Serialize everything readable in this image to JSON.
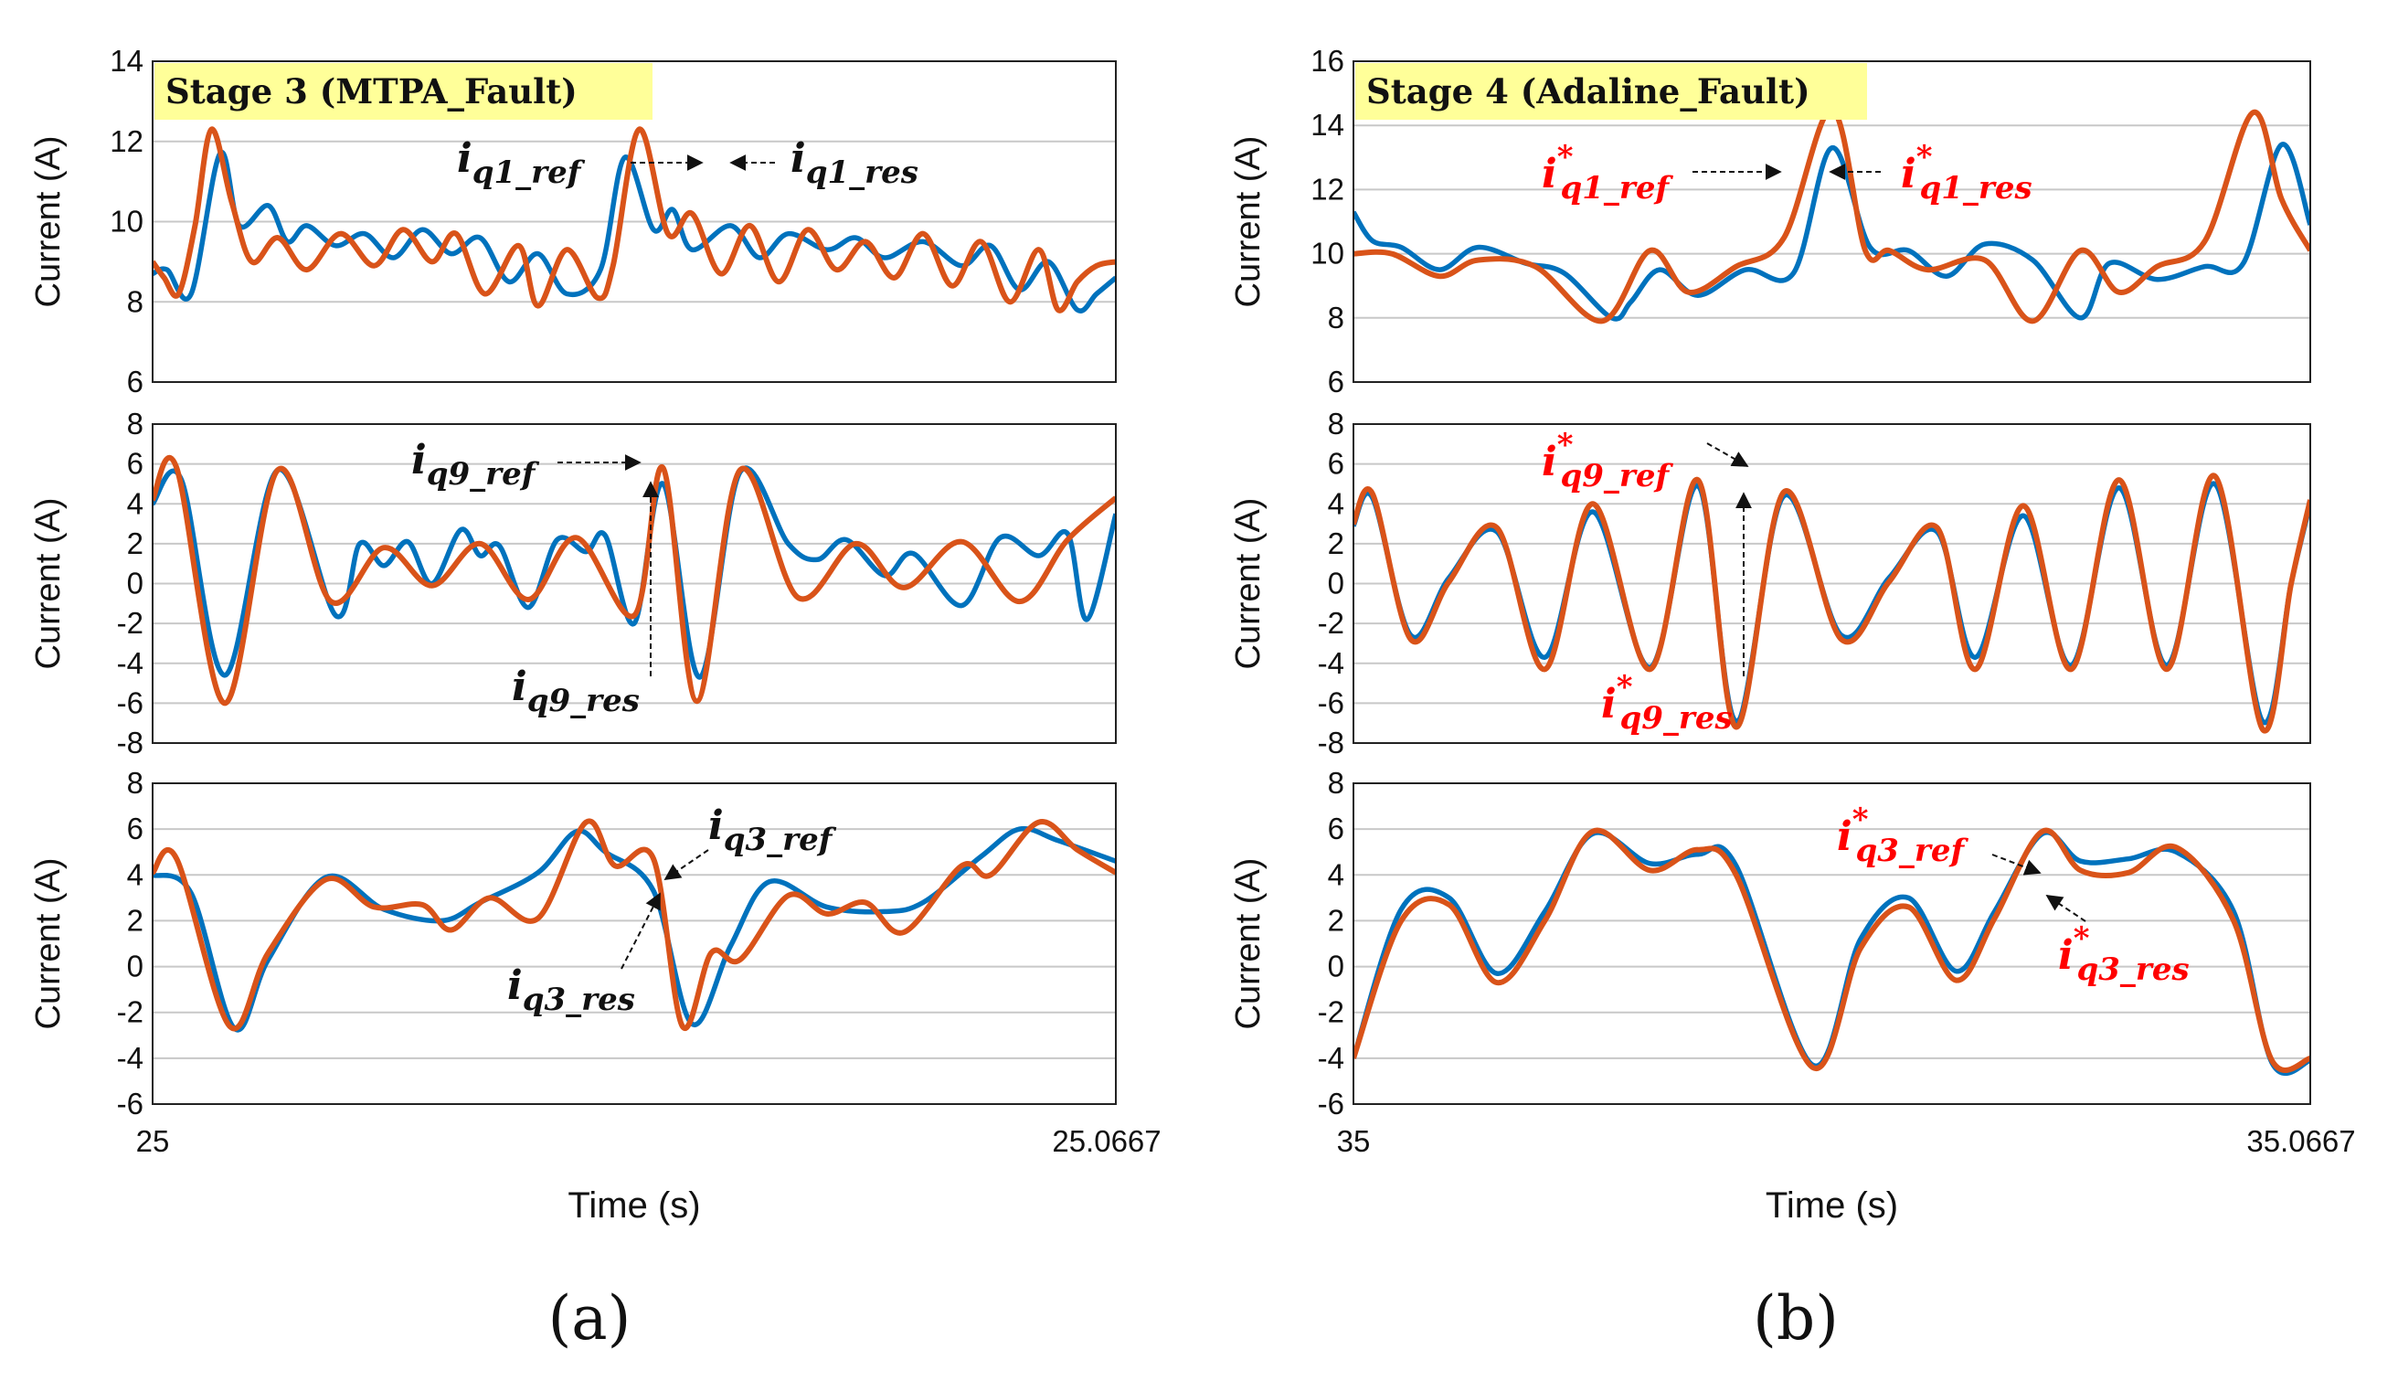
{
  "colors": {
    "ref": "#D95319",
    "res": "#0072BD",
    "grid": "#c8c8c8",
    "stage_bg": "#ffff99",
    "ann_black": "#111111",
    "ann_red": "#ff0000"
  },
  "captions": [
    "(a)",
    "(b)"
  ],
  "chart_data": [
    {
      "type": "line",
      "panel": "a",
      "stage_label": "Stage 3 (MTPA_Fault)",
      "xlabel": "Time (s)",
      "xlim": [
        25,
        25.0667
      ],
      "xtick_labels": [
        "25",
        "25.0667"
      ],
      "subplots": [
        {
          "ylabel": "Current (A)",
          "ylim": [
            6,
            14
          ],
          "yticks": [
            6,
            8,
            10,
            12,
            14
          ],
          "annotations": [
            {
              "label": "i",
              "sub": "q1_ref",
              "star": false
            },
            {
              "label": "i",
              "sub": "q1_res",
              "star": false
            }
          ],
          "series": [
            {
              "name": "i_q1_ref",
              "x": [
                0,
                0.012,
                0.027,
                0.044,
                0.061,
                0.082,
                0.103,
                0.13,
                0.16,
                0.195,
                0.23,
                0.26,
                0.29,
                0.315,
                0.345,
                0.38,
                0.4,
                0.43,
                0.462,
                0.478,
                0.505,
                0.535,
                0.56,
                0.59,
                0.62,
                0.65,
                0.68,
                0.71,
                0.74,
                0.77,
                0.8,
                0.83,
                0.86,
                0.89,
                0.92,
                0.94,
                0.96,
                0.98,
                1.0
              ],
              "y": [
                9.0,
                8.6,
                8.2,
                9.9,
                12.3,
                10.5,
                9.0,
                9.6,
                8.8,
                9.7,
                8.9,
                9.8,
                9.0,
                9.7,
                8.2,
                9.4,
                7.9,
                9.3,
                8.1,
                8.9,
                12.3,
                9.7,
                10.2,
                8.7,
                9.9,
                8.5,
                9.8,
                8.8,
                9.5,
                8.6,
                9.7,
                8.4,
                9.5,
                8.0,
                9.3,
                7.8,
                8.5,
                8.9,
                9.0
              ]
            },
            {
              "name": "i_q1_res",
              "x": [
                0,
                0.015,
                0.04,
                0.07,
                0.09,
                0.12,
                0.14,
                0.16,
                0.19,
                0.22,
                0.25,
                0.28,
                0.31,
                0.34,
                0.37,
                0.4,
                0.43,
                0.465,
                0.49,
                0.52,
                0.54,
                0.56,
                0.6,
                0.63,
                0.66,
                0.7,
                0.73,
                0.76,
                0.8,
                0.84,
                0.87,
                0.9,
                0.93,
                0.96,
                0.98,
                1.0
              ],
              "y": [
                8.7,
                8.8,
                8.2,
                11.7,
                9.9,
                10.4,
                9.5,
                9.9,
                9.4,
                9.7,
                9.1,
                9.8,
                9.2,
                9.6,
                8.5,
                9.2,
                8.2,
                8.8,
                11.6,
                9.8,
                10.3,
                9.3,
                9.9,
                9.1,
                9.7,
                9.3,
                9.6,
                9.1,
                9.5,
                8.9,
                9.4,
                8.3,
                9.0,
                7.8,
                8.2,
                8.6
              ]
            }
          ]
        },
        {
          "ylabel": "Current (A)",
          "ylim": [
            -8,
            8
          ],
          "yticks": [
            -8,
            -6,
            -4,
            -2,
            0,
            2,
            4,
            6,
            8
          ],
          "annotations": [
            {
              "label": "i",
              "sub": "q9_ref",
              "star": false
            },
            {
              "label": "i",
              "sub": "q9_res",
              "star": false
            }
          ],
          "series": [
            {
              "name": "i_q9_ref",
              "x": [
                0,
                0.025,
                0.075,
                0.13,
                0.185,
                0.24,
                0.29,
                0.34,
                0.39,
                0.44,
                0.5,
                0.53,
                0.565,
                0.61,
                0.67,
                0.73,
                0.78,
                0.84,
                0.9,
                0.95,
                1.0
              ],
              "y": [
                4.2,
                5.8,
                -6.0,
                5.7,
                -0.9,
                1.8,
                -0.1,
                2.0,
                -0.8,
                2.3,
                -1.6,
                5.8,
                -5.9,
                5.7,
                -0.7,
                2.0,
                -0.2,
                2.1,
                -0.9,
                2.2,
                4.3
              ]
            },
            {
              "name": "i_q9_res",
              "x": [
                0,
                0.03,
                0.075,
                0.13,
                0.19,
                0.215,
                0.24,
                0.265,
                0.29,
                0.32,
                0.34,
                0.36,
                0.39,
                0.42,
                0.45,
                0.47,
                0.5,
                0.53,
                0.568,
                0.61,
                0.66,
                0.69,
                0.72,
                0.76,
                0.79,
                0.84,
                0.88,
                0.92,
                0.95,
                0.97,
                1.0
              ],
              "y": [
                4.0,
                5.2,
                -4.6,
                5.7,
                -1.6,
                2.0,
                0.9,
                2.1,
                0.0,
                2.7,
                1.4,
                1.9,
                -1.2,
                2.2,
                1.6,
                2.4,
                -2.0,
                5.0,
                -4.7,
                5.6,
                2.0,
                1.2,
                2.2,
                0.4,
                1.5,
                -1.1,
                2.3,
                1.4,
                2.5,
                -1.8,
                3.5
              ]
            }
          ]
        },
        {
          "ylabel": "Current (A)",
          "ylim": [
            -6,
            8
          ],
          "yticks": [
            -6,
            -4,
            -2,
            0,
            2,
            4,
            6,
            8
          ],
          "annotations": [
            {
              "label": "i",
              "sub": "q3_ref",
              "star": false
            },
            {
              "label": "i",
              "sub": "q3_res",
              "star": false
            }
          ],
          "series": [
            {
              "name": "i_q3_ref",
              "x": [
                0,
                0.025,
                0.08,
                0.12,
                0.18,
                0.23,
                0.28,
                0.31,
                0.35,
                0.4,
                0.45,
                0.48,
                0.52,
                0.55,
                0.58,
                0.61,
                0.66,
                0.7,
                0.74,
                0.78,
                0.84,
                0.87,
                0.92,
                0.96,
                1.0
              ],
              "y": [
                4.1,
                4.7,
                -2.6,
                0.6,
                3.8,
                2.6,
                2.7,
                1.6,
                3.0,
                2.1,
                6.3,
                4.4,
                4.7,
                -2.6,
                0.6,
                0.3,
                3.1,
                2.3,
                2.8,
                1.5,
                4.4,
                4.0,
                6.3,
                5.1,
                4.1
              ]
            },
            {
              "name": "i_q3_res",
              "x": [
                0,
                0.04,
                0.085,
                0.12,
                0.18,
                0.24,
                0.3,
                0.34,
                0.4,
                0.44,
                0.47,
                0.52,
                0.56,
                0.6,
                0.64,
                0.7,
                0.76,
                0.8,
                0.86,
                0.9,
                0.94,
                1.0
              ],
              "y": [
                4.0,
                3.2,
                -2.7,
                0.3,
                3.9,
                2.5,
                2.0,
                2.8,
                4.1,
                5.9,
                5.0,
                3.3,
                -2.5,
                0.9,
                3.7,
                2.6,
                2.4,
                2.8,
                4.8,
                6.0,
                5.5,
                4.6
              ]
            }
          ]
        }
      ]
    },
    {
      "type": "line",
      "panel": "b",
      "stage_label": "Stage 4 (Adaline_Fault)",
      "xlabel": "Time (s)",
      "xlim": [
        35,
        35.0667
      ],
      "xtick_labels": [
        "35",
        "35.0667"
      ],
      "subplots": [
        {
          "ylabel": "Current (A)",
          "ylim": [
            6,
            16
          ],
          "yticks": [
            6,
            8,
            10,
            12,
            14,
            16
          ],
          "annotations": [
            {
              "label": "i",
              "sub": "q1_ref",
              "star": true
            },
            {
              "label": "i",
              "sub": "q1_res",
              "star": true
            }
          ],
          "series": [
            {
              "name": "i*_q1_ref",
              "x": [
                0,
                0.04,
                0.09,
                0.13,
                0.19,
                0.26,
                0.31,
                0.35,
                0.4,
                0.45,
                0.5,
                0.535,
                0.56,
                0.6,
                0.66,
                0.71,
                0.76,
                0.8,
                0.84,
                0.89,
                0.94,
                0.97,
                1.0
              ],
              "y": [
                10.0,
                10.0,
                9.3,
                9.8,
                9.6,
                7.9,
                10.1,
                8.8,
                9.6,
                10.5,
                14.5,
                10.1,
                10.1,
                9.5,
                9.8,
                7.9,
                10.1,
                8.8,
                9.6,
                10.4,
                14.4,
                11.7,
                10.1
              ]
            },
            {
              "name": "i*_q1_res",
              "x": [
                0,
                0.02,
                0.05,
                0.09,
                0.13,
                0.18,
                0.22,
                0.27,
                0.29,
                0.32,
                0.36,
                0.41,
                0.46,
                0.5,
                0.54,
                0.58,
                0.62,
                0.66,
                0.71,
                0.76,
                0.79,
                0.84,
                0.89,
                0.93,
                0.97,
                1.0
              ],
              "y": [
                11.3,
                10.4,
                10.2,
                9.5,
                10.2,
                9.7,
                9.4,
                8.0,
                8.5,
                9.5,
                8.7,
                9.5,
                9.4,
                13.3,
                10.2,
                10.1,
                9.3,
                10.3,
                9.8,
                8.0,
                9.7,
                9.2,
                9.6,
                9.7,
                13.4,
                10.9
              ]
            }
          ]
        },
        {
          "ylabel": "Current (A)",
          "ylim": [
            -8,
            8
          ],
          "yticks": [
            -8,
            -6,
            -4,
            -2,
            0,
            2,
            4,
            6,
            8
          ],
          "annotations": [
            {
              "label": "i",
              "sub": "q9_ref",
              "star": true
            },
            {
              "label": "i",
              "sub": "q9_res",
              "star": true
            }
          ],
          "series": [
            {
              "name": "i*_q9_ref",
              "x": [
                0,
                0.02,
                0.06,
                0.1,
                0.15,
                0.2,
                0.25,
                0.31,
                0.36,
                0.4,
                0.45,
                0.51,
                0.56,
                0.61,
                0.65,
                0.7,
                0.75,
                0.8,
                0.85,
                0.9,
                0.95,
                0.98,
                1.0
              ],
              "y": [
                3.0,
                4.5,
                -2.8,
                0.1,
                2.8,
                -4.3,
                4.0,
                -4.3,
                5.2,
                -7.2,
                4.6,
                -2.8,
                0.1,
                2.8,
                -4.3,
                3.9,
                -4.3,
                5.2,
                -4.3,
                5.4,
                -7.3,
                0.0,
                4.2
              ]
            },
            {
              "name": "i*_q9_res",
              "x": [
                0,
                0.02,
                0.06,
                0.1,
                0.15,
                0.2,
                0.25,
                0.31,
                0.36,
                0.4,
                0.45,
                0.51,
                0.56,
                0.61,
                0.65,
                0.7,
                0.75,
                0.8,
                0.85,
                0.9,
                0.95,
                0.98,
                1.0
              ],
              "y": [
                2.9,
                4.3,
                -2.6,
                0.3,
                2.6,
                -3.7,
                3.6,
                -4.2,
                4.9,
                -6.9,
                4.4,
                -2.6,
                0.3,
                2.6,
                -3.7,
                3.4,
                -4.1,
                4.8,
                -4.1,
                5.0,
                -6.9,
                0.0,
                4.0
              ]
            }
          ]
        },
        {
          "ylabel": "Current (A)",
          "ylim": [
            -6,
            8
          ],
          "yticks": [
            -6,
            -4,
            -2,
            0,
            2,
            4,
            6,
            8
          ],
          "annotations": [
            {
              "label": "i",
              "sub": "q3_ref",
              "star": true
            },
            {
              "label": "i",
              "sub": "q3_res",
              "star": true
            }
          ],
          "series": [
            {
              "name": "i*_q3_ref",
              "x": [
                0,
                0.05,
                0.1,
                0.15,
                0.2,
                0.25,
                0.31,
                0.36,
                0.4,
                0.48,
                0.53,
                0.58,
                0.63,
                0.67,
                0.72,
                0.76,
                0.81,
                0.86,
                0.92,
                0.96,
                1.0
              ],
              "y": [
                -4.0,
                2.0,
                2.7,
                -0.7,
                2.0,
                5.9,
                4.2,
                5.1,
                4.0,
                -4.4,
                0.8,
                2.6,
                -0.6,
                2.1,
                5.9,
                4.2,
                4.1,
                5.2,
                2.0,
                -4.1,
                -4.0
              ]
            },
            {
              "name": "i*_q3_res",
              "x": [
                0,
                0.05,
                0.1,
                0.15,
                0.2,
                0.25,
                0.31,
                0.36,
                0.4,
                0.48,
                0.53,
                0.58,
                0.63,
                0.67,
                0.72,
                0.76,
                0.81,
                0.86,
                0.92,
                0.96,
                1.0
              ],
              "y": [
                -4.0,
                2.5,
                3.0,
                -0.3,
                2.4,
                5.8,
                4.5,
                4.9,
                4.4,
                -4.3,
                1.2,
                3.0,
                -0.2,
                2.4,
                5.8,
                4.6,
                4.7,
                5.0,
                2.4,
                -4.2,
                -4.1
              ]
            }
          ]
        }
      ]
    }
  ]
}
